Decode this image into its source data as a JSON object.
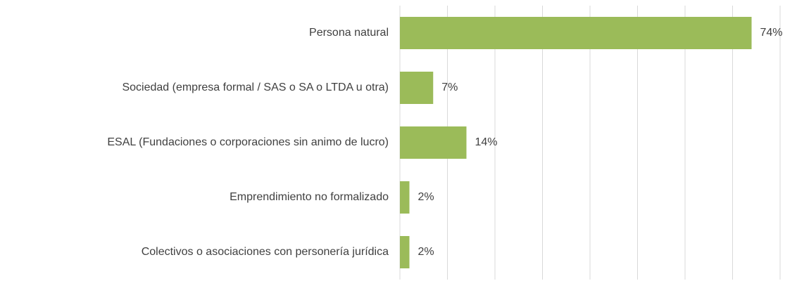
{
  "chart_data": {
    "type": "bar",
    "orientation": "horizontal",
    "categories": [
      "Persona natural",
      "Sociedad (empresa formal / SAS o SA o LTDA u otra)",
      "ESAL (Fundaciones o corporaciones sin animo de lucro)",
      "Emprendimiento no formalizado",
      "Colectivos o asociaciones con personería jurídica"
    ],
    "values": [
      74,
      7,
      14,
      2,
      2
    ],
    "value_labels": [
      "74%",
      "7%",
      "14%",
      "2%",
      "2%"
    ],
    "color": "#9bbb59",
    "xlim": [
      0,
      80
    ],
    "xticks": [
      0,
      10,
      20,
      30,
      40,
      50,
      60,
      70,
      80
    ],
    "grid": true
  }
}
